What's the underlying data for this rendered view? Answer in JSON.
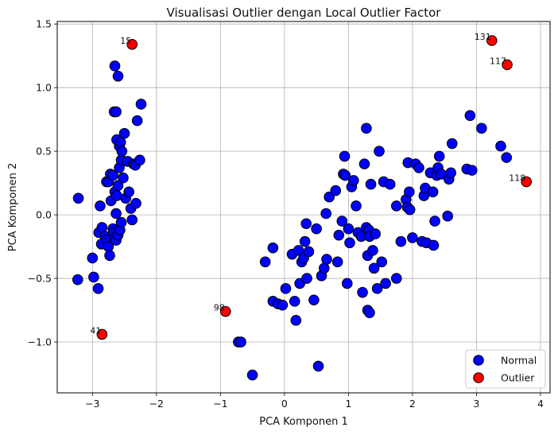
{
  "chart_data": {
    "type": "scatter",
    "title": "Visualisasi Outlier dengan Local Outlier Factor",
    "xlabel": "PCA Komponen 1",
    "ylabel": "PCA Komponen 2",
    "xlim": [
      -3.55,
      4.15
    ],
    "ylim": [
      -1.4,
      1.52
    ],
    "xticks": [
      -3,
      -2,
      -1,
      0,
      1,
      2,
      3,
      4
    ],
    "xtick_labels": [
      "−3",
      "−2",
      "−1",
      "0",
      "1",
      "2",
      "3",
      "4"
    ],
    "yticks": [
      -1.0,
      -0.5,
      0.0,
      0.5,
      1.0,
      1.5
    ],
    "ytick_labels": [
      "−1.0",
      "−0.5",
      "0.0",
      "0.5",
      "1.0",
      "1.5"
    ],
    "grid": true,
    "legend_position": "lower-right",
    "colors": {
      "normal": "#0000ff",
      "outlier": "#ff0000",
      "edge": "#000000",
      "grid": "#b0b0b0"
    },
    "series": [
      {
        "name": "Normal",
        "color": "#0000ff",
        "points": [
          [
            -3.22,
            0.13
          ],
          [
            -3.23,
            -0.51
          ],
          [
            -3.0,
            -0.34
          ],
          [
            -2.98,
            -0.49
          ],
          [
            -2.91,
            -0.58
          ],
          [
            -2.88,
            0.07
          ],
          [
            -2.9,
            -0.14
          ],
          [
            -2.85,
            -0.1
          ],
          [
            -2.86,
            -0.23
          ],
          [
            -2.8,
            -0.17
          ],
          [
            -2.78,
            -0.2
          ],
          [
            -2.75,
            -0.25
          ],
          [
            -2.73,
            -0.32
          ],
          [
            -2.78,
            0.26
          ],
          [
            -2.75,
            0.26
          ],
          [
            -2.72,
            0.32
          ],
          [
            -2.71,
            0.11
          ],
          [
            -2.68,
            -0.11
          ],
          [
            -2.67,
            -0.14
          ],
          [
            -2.65,
            -0.18
          ],
          [
            -2.63,
            -0.2
          ],
          [
            -2.6,
            -0.16
          ],
          [
            -2.57,
            -0.12
          ],
          [
            -2.55,
            -0.06
          ],
          [
            -2.68,
            0.31
          ],
          [
            -2.65,
            0.18
          ],
          [
            -2.62,
            0.15
          ],
          [
            -2.6,
            0.23
          ],
          [
            -2.58,
            0.37
          ],
          [
            -2.55,
            0.43
          ],
          [
            -2.52,
            0.29
          ],
          [
            -2.48,
            0.13
          ],
          [
            -2.43,
            0.18
          ],
          [
            -2.4,
            0.05
          ],
          [
            -2.38,
            -0.04
          ],
          [
            -2.32,
            0.09
          ],
          [
            -2.63,
            0.01
          ],
          [
            -2.45,
            0.42
          ],
          [
            -2.36,
            0.4
          ],
          [
            -2.33,
            0.39
          ],
          [
            -2.26,
            0.43
          ],
          [
            -2.62,
            0.59
          ],
          [
            -2.58,
            0.54
          ],
          [
            -2.56,
            0.57
          ],
          [
            -2.54,
            0.5
          ],
          [
            -2.5,
            0.64
          ],
          [
            -2.66,
            0.81
          ],
          [
            -2.63,
            0.81
          ],
          [
            -2.3,
            0.74
          ],
          [
            -2.24,
            0.87
          ],
          [
            -2.65,
            1.17
          ],
          [
            -2.6,
            1.09
          ],
          [
            -0.3,
            -0.37
          ],
          [
            -0.18,
            -0.26
          ],
          [
            -0.18,
            -0.68
          ],
          [
            -0.1,
            -0.7
          ],
          [
            -0.03,
            -0.71
          ],
          [
            0.02,
            -0.58
          ],
          [
            0.12,
            -0.31
          ],
          [
            0.16,
            -0.68
          ],
          [
            0.18,
            -0.83
          ],
          [
            0.22,
            -0.28
          ],
          [
            0.24,
            -0.54
          ],
          [
            0.27,
            -0.37
          ],
          [
            0.3,
            -0.34
          ],
          [
            0.32,
            -0.21
          ],
          [
            0.34,
            -0.07
          ],
          [
            0.35,
            -0.5
          ],
          [
            0.38,
            -0.29
          ],
          [
            0.46,
            -0.67
          ],
          [
            0.5,
            -0.11
          ],
          [
            0.58,
            -0.48
          ],
          [
            0.62,
            -0.42
          ],
          [
            0.66,
            -0.35
          ],
          [
            0.65,
            0.01
          ],
          [
            0.7,
            0.14
          ],
          [
            0.8,
            0.19
          ],
          [
            0.83,
            -0.37
          ],
          [
            0.85,
            -0.16
          ],
          [
            0.9,
            -0.05
          ],
          [
            0.92,
            0.32
          ],
          [
            0.94,
            0.46
          ],
          [
            0.95,
            0.31
          ],
          [
            0.98,
            -0.54
          ],
          [
            1.0,
            -0.11
          ],
          [
            1.02,
            -0.22
          ],
          [
            1.05,
            0.22
          ],
          [
            1.08,
            0.27
          ],
          [
            1.12,
            0.07
          ],
          [
            1.15,
            -0.14
          ],
          [
            1.2,
            -0.17
          ],
          [
            1.22,
            -0.61
          ],
          [
            1.25,
            0.4
          ],
          [
            1.28,
            -0.1
          ],
          [
            1.3,
            -0.32
          ],
          [
            1.32,
            -0.12
          ],
          [
            1.33,
            -0.17
          ],
          [
            1.35,
            0.24
          ],
          [
            1.38,
            -0.28
          ],
          [
            1.4,
            -0.42
          ],
          [
            1.42,
            -0.15
          ],
          [
            1.45,
            -0.58
          ],
          [
            1.48,
            0.5
          ],
          [
            1.52,
            -0.37
          ],
          [
            1.55,
            0.26
          ],
          [
            1.58,
            -0.54
          ],
          [
            1.65,
            0.24
          ],
          [
            1.75,
            -0.5
          ],
          [
            1.75,
            0.07
          ],
          [
            1.82,
            -0.21
          ],
          [
            1.9,
            0.12
          ],
          [
            1.92,
            0.06
          ],
          [
            1.93,
            0.41
          ],
          [
            1.95,
            0.18
          ],
          [
            1.96,
            0.04
          ],
          [
            2.0,
            -0.18
          ],
          [
            2.05,
            0.4
          ],
          [
            2.1,
            0.37
          ],
          [
            2.15,
            -0.21
          ],
          [
            2.18,
            0.15
          ],
          [
            2.2,
            0.21
          ],
          [
            2.22,
            -0.22
          ],
          [
            2.28,
            0.33
          ],
          [
            2.32,
            0.18
          ],
          [
            2.33,
            -0.24
          ],
          [
            2.35,
            -0.05
          ],
          [
            2.38,
            0.31
          ],
          [
            2.4,
            0.37
          ],
          [
            2.42,
            0.46
          ],
          [
            2.45,
            0.32
          ],
          [
            2.55,
            -0.01
          ],
          [
            2.57,
            0.28
          ],
          [
            2.6,
            0.33
          ],
          [
            2.62,
            0.56
          ],
          [
            2.85,
            0.36
          ],
          [
            2.9,
            0.78
          ],
          [
            2.93,
            0.35
          ],
          [
            3.08,
            0.68
          ],
          [
            3.38,
            0.54
          ],
          [
            3.47,
            0.45
          ],
          [
            1.28,
            0.68
          ],
          [
            1.3,
            -0.75
          ],
          [
            1.33,
            -0.77
          ],
          [
            -0.72,
            -1.0
          ],
          [
            -0.68,
            -1.0
          ],
          [
            -0.5,
            -1.26
          ],
          [
            0.53,
            -1.19
          ]
        ]
      },
      {
        "name": "Outlier",
        "color": "#ff0000",
        "points": [
          [
            -2.38,
            1.34
          ],
          [
            3.24,
            1.37
          ],
          [
            3.48,
            1.18
          ],
          [
            3.78,
            0.26
          ],
          [
            -0.92,
            -0.76
          ],
          [
            -2.85,
            -0.94
          ]
        ],
        "labels": [
          "15",
          "131",
          "117",
          "118",
          "98",
          "41"
        ]
      }
    ]
  }
}
